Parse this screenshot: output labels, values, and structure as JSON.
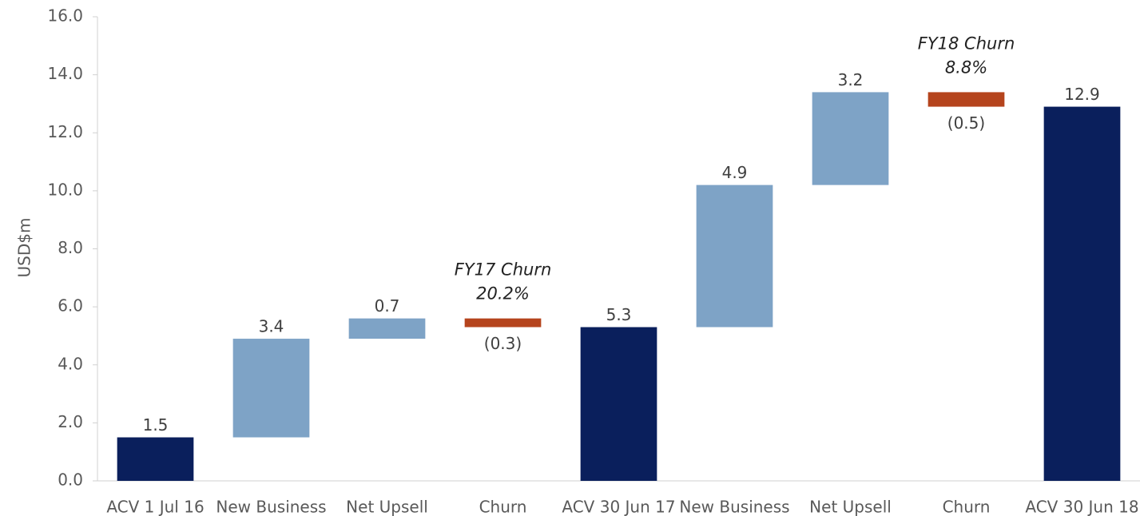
{
  "chart_data": {
    "type": "waterfall",
    "y_label": "USD$m",
    "categories": [
      "ACV 1 Jul 16",
      "New Business",
      "Net Upsell",
      "Churn",
      "ACV 30 Jun 17",
      "New Business",
      "Net Upsell",
      "Churn",
      "ACV 30 Jun 18"
    ],
    "values": [
      1.5,
      3.4,
      0.7,
      -0.3,
      5.3,
      4.9,
      3.2,
      -0.5,
      12.9
    ],
    "value_labels": [
      "1.5",
      "3.4",
      "0.7",
      "(0.3)",
      "5.3",
      "4.9",
      "3.2",
      "(0.5)",
      "12.9"
    ],
    "is_total": [
      true,
      false,
      false,
      false,
      true,
      false,
      false,
      false,
      true
    ],
    "colors": {
      "total": "#0a1f5c",
      "increase": "#7ea3c6",
      "decrease": "#b5441d"
    },
    "annotations": [
      [
        "FY17 Churn",
        "20.2%"
      ],
      [
        "FY18 Churn",
        "8.8%"
      ]
    ],
    "ylim": [
      0,
      16
    ],
    "yticks": [
      {
        "value": 0,
        "label": "0.0"
      },
      {
        "value": 2,
        "label": "2.0"
      },
      {
        "value": 4,
        "label": "4.0"
      },
      {
        "value": 6,
        "label": "6.0"
      },
      {
        "value": 8,
        "label": "8.0"
      },
      {
        "value": 10,
        "label": "10.0"
      },
      {
        "value": 12,
        "label": "12.0"
      },
      {
        "value": 14,
        "label": "14.0"
      },
      {
        "value": 16,
        "label": "16.0"
      }
    ],
    "grid": false
  }
}
